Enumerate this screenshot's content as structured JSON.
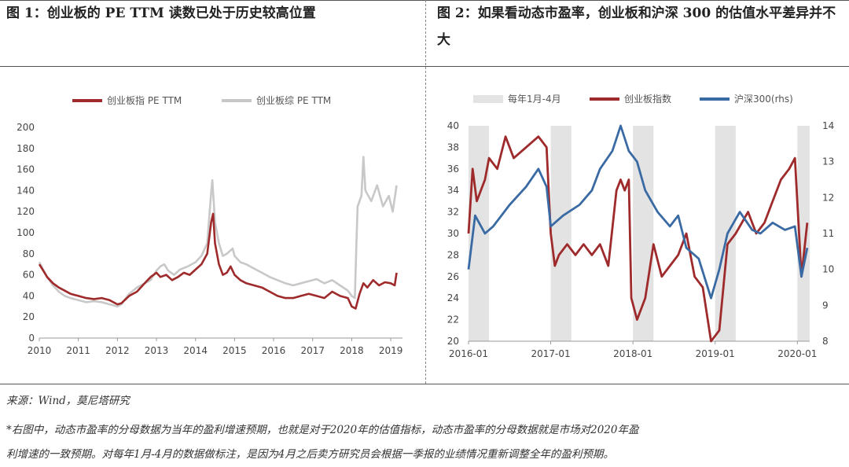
{
  "titles": {
    "left": "图 1：创业板的 PE TTM 读数已处于历史较高位置",
    "right": "图 2：如果看动态市盈率，创业板和沪深 300 的估值水平差异并不大"
  },
  "footer": {
    "source": "来源：Wind，莫尼塔研究",
    "note_line1": "*右图中，动态市盈率的分母数据为当年的盈利增速预期，也就是对于2020年的估值指标，动态市盈率的分母数据就是市场对2020年盈",
    "note_line2": "利增速的一致预期。对每年1月-4月的数据做标注，是因为4月之后卖方研究员会根据一季报的业绩情况重新调整全年的盈利预期。"
  },
  "colors": {
    "red": "#9e2a2b",
    "gray": "#c8c8c8",
    "blue": "#3a6aa3",
    "shade": "#e3e3e3"
  },
  "chart_data": [
    {
      "type": "line",
      "legend_position": "top",
      "grid": false,
      "x_tick_labels": [
        "2010",
        "2011",
        "2012",
        "2013",
        "2014",
        "2015",
        "2016",
        "2017",
        "2018",
        "2019"
      ],
      "y_tick_labels": [
        "0",
        "20",
        "40",
        "60",
        "80",
        "100",
        "120",
        "140",
        "160",
        "180",
        "200"
      ],
      "xlim": [
        2010.0,
        2019.3
      ],
      "ylim": [
        0,
        200
      ],
      "series": [
        {
          "name": "创业板指 PE TTM",
          "color": "#9e2a2b",
          "points": [
            [
              2010.0,
              70
            ],
            [
              2010.1,
              64
            ],
            [
              2010.2,
              58
            ],
            [
              2010.35,
              52
            ],
            [
              2010.5,
              48
            ],
            [
              2010.65,
              45
            ],
            [
              2010.8,
              42
            ],
            [
              2011.0,
              40
            ],
            [
              2011.2,
              38
            ],
            [
              2011.4,
              37
            ],
            [
              2011.6,
              38
            ],
            [
              2011.8,
              36
            ],
            [
              2012.0,
              32
            ],
            [
              2012.1,
              33
            ],
            [
              2012.3,
              40
            ],
            [
              2012.5,
              44
            ],
            [
              2012.7,
              52
            ],
            [
              2012.85,
              58
            ],
            [
              2013.0,
              62
            ],
            [
              2013.1,
              58
            ],
            [
              2013.25,
              60
            ],
            [
              2013.4,
              55
            ],
            [
              2013.55,
              58
            ],
            [
              2013.7,
              62
            ],
            [
              2013.85,
              60
            ],
            [
              2014.0,
              65
            ],
            [
              2014.15,
              70
            ],
            [
              2014.3,
              80
            ],
            [
              2014.4,
              110
            ],
            [
              2014.45,
              118
            ],
            [
              2014.5,
              90
            ],
            [
              2014.6,
              70
            ],
            [
              2014.7,
              60
            ],
            [
              2014.8,
              62
            ],
            [
              2014.9,
              68
            ],
            [
              2015.0,
              60
            ],
            [
              2015.15,
              55
            ],
            [
              2015.3,
              52
            ],
            [
              2015.5,
              50
            ],
            [
              2015.7,
              48
            ],
            [
              2015.9,
              44
            ],
            [
              2016.1,
              40
            ],
            [
              2016.3,
              38
            ],
            [
              2016.5,
              38
            ],
            [
              2016.7,
              40
            ],
            [
              2016.9,
              42
            ],
            [
              2017.1,
              40
            ],
            [
              2017.3,
              38
            ],
            [
              2017.5,
              44
            ],
            [
              2017.7,
              40
            ],
            [
              2017.9,
              38
            ],
            [
              2018.0,
              30
            ],
            [
              2018.1,
              28
            ],
            [
              2018.2,
              42
            ],
            [
              2018.3,
              52
            ],
            [
              2018.4,
              48
            ],
            [
              2018.55,
              55
            ],
            [
              2018.7,
              50
            ],
            [
              2018.85,
              53
            ],
            [
              2019.0,
              52
            ],
            [
              2019.1,
              50
            ],
            [
              2019.15,
              62
            ]
          ]
        },
        {
          "name": "创业板综 PE TTM",
          "color": "#c8c8c8",
          "points": [
            [
              2010.0,
              72
            ],
            [
              2010.1,
              65
            ],
            [
              2010.2,
              58
            ],
            [
              2010.35,
              50
            ],
            [
              2010.5,
              44
            ],
            [
              2010.65,
              40
            ],
            [
              2010.8,
              38
            ],
            [
              2011.0,
              36
            ],
            [
              2011.2,
              34
            ],
            [
              2011.4,
              35
            ],
            [
              2011.6,
              34
            ],
            [
              2011.8,
              32
            ],
            [
              2012.0,
              30
            ],
            [
              2012.1,
              32
            ],
            [
              2012.3,
              42
            ],
            [
              2012.5,
              48
            ],
            [
              2012.7,
              52
            ],
            [
              2012.85,
              55
            ],
            [
              2013.0,
              64
            ],
            [
              2013.1,
              68
            ],
            [
              2013.2,
              70
            ],
            [
              2013.3,
              64
            ],
            [
              2013.45,
              60
            ],
            [
              2013.6,
              65
            ],
            [
              2013.8,
              68
            ],
            [
              2014.0,
              72
            ],
            [
              2014.15,
              78
            ],
            [
              2014.3,
              90
            ],
            [
              2014.4,
              138
            ],
            [
              2014.43,
              150
            ],
            [
              2014.5,
              110
            ],
            [
              2014.6,
              90
            ],
            [
              2014.7,
              78
            ],
            [
              2014.8,
              80
            ],
            [
              2014.95,
              85
            ],
            [
              2015.0,
              78
            ],
            [
              2015.15,
              72
            ],
            [
              2015.3,
              70
            ],
            [
              2015.5,
              66
            ],
            [
              2015.7,
              62
            ],
            [
              2015.9,
              58
            ],
            [
              2016.1,
              55
            ],
            [
              2016.3,
              52
            ],
            [
              2016.5,
              50
            ],
            [
              2016.7,
              52
            ],
            [
              2016.9,
              54
            ],
            [
              2017.1,
              56
            ],
            [
              2017.3,
              52
            ],
            [
              2017.5,
              55
            ],
            [
              2017.7,
              50
            ],
            [
              2017.9,
              45
            ],
            [
              2018.0,
              40
            ],
            [
              2018.08,
              38
            ],
            [
              2018.12,
              90
            ],
            [
              2018.15,
              125
            ],
            [
              2018.25,
              135
            ],
            [
              2018.3,
              172
            ],
            [
              2018.35,
              140
            ],
            [
              2018.5,
              130
            ],
            [
              2018.65,
              145
            ],
            [
              2018.8,
              125
            ],
            [
              2018.95,
              135
            ],
            [
              2019.05,
              120
            ],
            [
              2019.15,
              145
            ]
          ]
        }
      ]
    },
    {
      "type": "line",
      "legend_position": "top",
      "grid": false,
      "x_tick_labels": [
        "2016-01",
        "2017-01",
        "2018-01",
        "2019-01",
        "2020-01"
      ],
      "y_tick_labels_left": [
        "20",
        "22",
        "24",
        "26",
        "28",
        "30",
        "32",
        "34",
        "36",
        "38",
        "40"
      ],
      "y_tick_labels_right": [
        "8",
        "9",
        "10",
        "11",
        "12",
        "13",
        "14"
      ],
      "xlim": [
        2016.0,
        2020.15
      ],
      "ylim_left": [
        20,
        40
      ],
      "ylim_right": [
        8,
        14
      ],
      "shaded_periods": {
        "name": "每年1月-4月",
        "color": "#e3e3e3",
        "ranges": [
          [
            2016.0,
            2016.25
          ],
          [
            2017.0,
            2017.25
          ],
          [
            2018.0,
            2018.25
          ],
          [
            2019.0,
            2019.25
          ],
          [
            2020.0,
            2020.15
          ]
        ]
      },
      "series": [
        {
          "name": "创业板指数",
          "axis": "left",
          "color": "#9e2a2b",
          "points": [
            [
              2016.0,
              30
            ],
            [
              2016.05,
              36
            ],
            [
              2016.1,
              33
            ],
            [
              2016.2,
              35
            ],
            [
              2016.25,
              37
            ],
            [
              2016.35,
              36
            ],
            [
              2016.45,
              39
            ],
            [
              2016.55,
              37
            ],
            [
              2016.7,
              38
            ],
            [
              2016.85,
              39
            ],
            [
              2016.95,
              38
            ],
            [
              2017.0,
              30
            ],
            [
              2017.05,
              27
            ],
            [
              2017.1,
              28
            ],
            [
              2017.2,
              29
            ],
            [
              2017.3,
              28
            ],
            [
              2017.4,
              29
            ],
            [
              2017.5,
              28
            ],
            [
              2017.6,
              29
            ],
            [
              2017.7,
              27
            ],
            [
              2017.8,
              34
            ],
            [
              2017.85,
              35
            ],
            [
              2017.9,
              34
            ],
            [
              2017.95,
              35
            ],
            [
              2017.98,
              24
            ],
            [
              2018.05,
              22
            ],
            [
              2018.15,
              24
            ],
            [
              2018.25,
              29
            ],
            [
              2018.35,
              26
            ],
            [
              2018.45,
              27
            ],
            [
              2018.55,
              28
            ],
            [
              2018.65,
              30
            ],
            [
              2018.75,
              26
            ],
            [
              2018.85,
              25
            ],
            [
              2018.95,
              20
            ],
            [
              2019.05,
              21
            ],
            [
              2019.15,
              29
            ],
            [
              2019.25,
              30
            ],
            [
              2019.4,
              32
            ],
            [
              2019.5,
              30
            ],
            [
              2019.6,
              31
            ],
            [
              2019.7,
              33
            ],
            [
              2019.8,
              35
            ],
            [
              2019.9,
              36
            ],
            [
              2019.97,
              37
            ],
            [
              2020.05,
              26
            ],
            [
              2020.12,
              31
            ]
          ]
        },
        {
          "name": "沪深300(rhs)",
          "axis": "right",
          "color": "#3a6aa3",
          "points": [
            [
              2016.0,
              10
            ],
            [
              2016.08,
              11.5
            ],
            [
              2016.2,
              11
            ],
            [
              2016.3,
              11.2
            ],
            [
              2016.5,
              11.8
            ],
            [
              2016.7,
              12.3
            ],
            [
              2016.85,
              12.8
            ],
            [
              2016.95,
              12.3
            ],
            [
              2017.0,
              11.2
            ],
            [
              2017.15,
              11.5
            ],
            [
              2017.35,
              11.8
            ],
            [
              2017.5,
              12.2
            ],
            [
              2017.6,
              12.8
            ],
            [
              2017.75,
              13.3
            ],
            [
              2017.85,
              14
            ],
            [
              2017.95,
              13.3
            ],
            [
              2018.05,
              13
            ],
            [
              2018.15,
              12.2
            ],
            [
              2018.3,
              11.6
            ],
            [
              2018.45,
              11.2
            ],
            [
              2018.55,
              11.5
            ],
            [
              2018.65,
              10.6
            ],
            [
              2018.8,
              10.3
            ],
            [
              2018.95,
              9.2
            ],
            [
              2019.05,
              10
            ],
            [
              2019.15,
              11.0
            ],
            [
              2019.3,
              11.6
            ],
            [
              2019.45,
              11.1
            ],
            [
              2019.55,
              11.0
            ],
            [
              2019.7,
              11.3
            ],
            [
              2019.85,
              11.1
            ],
            [
              2019.97,
              11.2
            ],
            [
              2020.05,
              9.8
            ],
            [
              2020.12,
              10.6
            ]
          ]
        }
      ]
    }
  ]
}
